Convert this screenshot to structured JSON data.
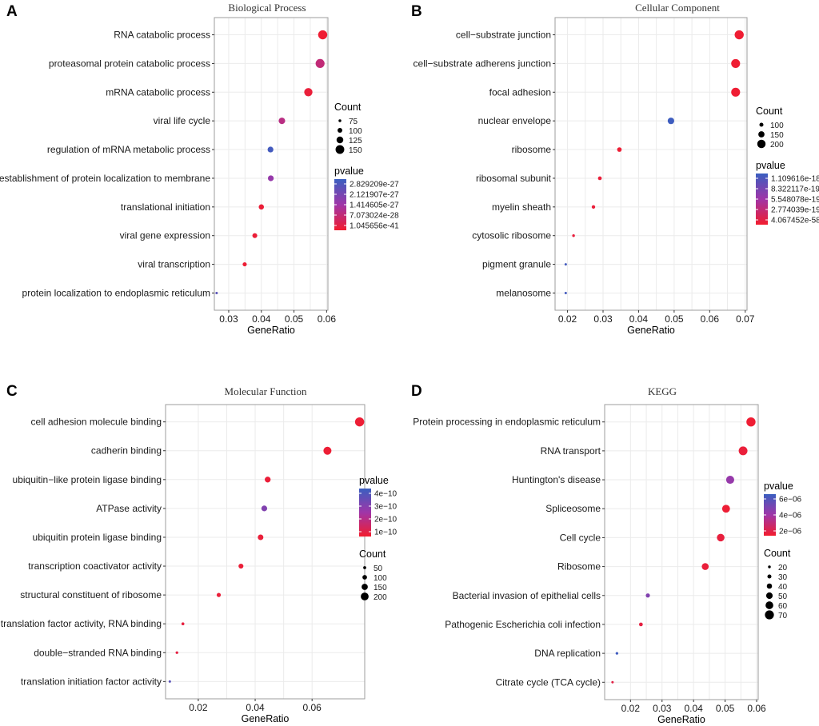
{
  "chart_data": [
    {
      "panel": "A",
      "type": "scatter",
      "title": "Biological Process",
      "xlabel": "GeneRatio",
      "xlim": [
        0.0256,
        0.0604
      ],
      "xticks": [
        "0.03",
        "0.04",
        "0.05",
        "0.06"
      ],
      "categories": [
        "RNA catabolic process",
        "proteasomal protein catabolic process",
        "mRNA catabolic process",
        "viral life cycle",
        "regulation of mRNA metabolic process",
        "establishment of protein localization to membrane",
        "translational initiation",
        "viral gene expression",
        "viral transcription",
        "protein localization to endoplasmic reticulum"
      ],
      "gene_ratio": [
        0.0588,
        0.058,
        0.0544,
        0.0463,
        0.0428,
        0.0429,
        0.04,
        0.038,
        0.0349,
        0.0263
      ],
      "count": [
        155,
        153,
        144,
        122,
        113,
        113,
        106,
        101,
        92,
        70
      ],
      "pvalue_level": [
        0.02,
        0.3,
        0.05,
        0.35,
        0.95,
        0.55,
        0.04,
        0.04,
        0.03,
        0.85
      ],
      "legend_order": [
        "size",
        "color"
      ],
      "size_legend": {
        "title": "Count",
        "labels": [
          "75",
          "100",
          "125",
          "150"
        ],
        "values": [
          75,
          100,
          125,
          150
        ],
        "range": [
          70,
          155
        ]
      },
      "color_legend": {
        "title": "pvalue",
        "labels": [
          "2.829209e-27",
          "2.121907e-27",
          "1.414605e-27",
          "7.073024e-28",
          "1.045656e-41"
        ]
      }
    },
    {
      "panel": "B",
      "type": "scatter",
      "title": "Cellular Component",
      "xlabel": "GeneRatio",
      "xlim": [
        0.0165,
        0.0705
      ],
      "xticks": [
        "0.02",
        "0.03",
        "0.04",
        "0.05",
        "0.06",
        "0.07"
      ],
      "categories": [
        "cell−substrate junction",
        "cell−substrate adherens junction",
        "focal adhesion",
        "nuclear envelope",
        "ribosome",
        "ribosomal subunit",
        "myelin sheath",
        "cytosolic ribosome",
        "pigment granule",
        "melanosome"
      ],
      "gene_ratio": [
        0.0683,
        0.0673,
        0.0673,
        0.0491,
        0.0346,
        0.0291,
        0.0273,
        0.0217,
        0.0195,
        0.0195
      ],
      "count": [
        218,
        213,
        213,
        158,
        112,
        93,
        87,
        69,
        62,
        62
      ],
      "pvalue_level": [
        0.02,
        0.02,
        0.02,
        0.98,
        0.03,
        0.05,
        0.05,
        0.06,
        0.95,
        0.95
      ],
      "legend_order": [
        "size",
        "color"
      ],
      "size_legend": {
        "title": "Count",
        "labels": [
          "100",
          "150",
          "200"
        ],
        "values": [
          100,
          150,
          200
        ],
        "range": [
          62,
          218
        ]
      },
      "color_legend": {
        "title": "pvalue",
        "labels": [
          "1.109616e-18",
          "8.322117e-19",
          "5.548078e-19",
          "2.774039e-19",
          "4.067452e-58"
        ]
      }
    },
    {
      "panel": "C",
      "type": "scatter",
      "title": "Molecular Function",
      "xlabel": "GeneRatio",
      "xlim": [
        0.0085,
        0.0785
      ],
      "xticks": [
        "0.02",
        "0.04",
        "0.06"
      ],
      "categories": [
        "cell adhesion molecule binding",
        "cadherin binding",
        "ubiquitin−like protein ligase binding",
        "ATPase activity",
        "ubiquitin protein ligase binding",
        "transcription coactivator activity",
        "structural constituent of ribosome",
        "translation factor activity, RNA binding",
        "double−stranded RNA binding",
        "translation initiation factor activity"
      ],
      "gene_ratio": [
        0.0767,
        0.0654,
        0.0444,
        0.0432,
        0.0419,
        0.035,
        0.0272,
        0.0146,
        0.0125,
        0.01
      ],
      "count": [
        240,
        205,
        139,
        136,
        131,
        110,
        85,
        46,
        39,
        31
      ],
      "pvalue_level": [
        0.03,
        0.03,
        0.04,
        0.65,
        0.05,
        0.04,
        0.05,
        0.07,
        0.08,
        0.85
      ],
      "legend_order": [
        "color",
        "size"
      ],
      "size_legend": {
        "title": "Count",
        "labels": [
          "50",
          "100",
          "150",
          "200"
        ],
        "values": [
          50,
          100,
          150,
          200
        ],
        "range": [
          31,
          240
        ]
      },
      "color_legend": {
        "title": "pvalue",
        "labels": [
          "4e−10",
          "3e−10",
          "2e−10",
          "1e−10"
        ]
      }
    },
    {
      "panel": "D",
      "type": "scatter",
      "title": "KEGG",
      "xlabel": "GeneRatio",
      "xlim": [
        0.0118,
        0.0605
      ],
      "xticks": [
        "0.02",
        "0.03",
        "0.04",
        "0.05",
        "0.06"
      ],
      "categories": [
        "Protein processing in endoplasmic reticulum",
        "RNA transport",
        "Huntington's disease",
        "Spliceosome",
        "Cell cycle",
        "Ribosome",
        "Bacterial invasion of epithelial cells",
        "Pathogenic Escherichia coli infection",
        "DNA replication",
        "Citrate cycle (TCA cycle)"
      ],
      "gene_ratio": [
        0.0582,
        0.0557,
        0.0516,
        0.0503,
        0.0486,
        0.0437,
        0.0255,
        0.0233,
        0.0157,
        0.0143
      ],
      "count": [
        71,
        68,
        63,
        61,
        59,
        53,
        31,
        28,
        19,
        17
      ],
      "pvalue_level": [
        0.02,
        0.05,
        0.55,
        0.03,
        0.06,
        0.05,
        0.65,
        0.08,
        0.97,
        0.1
      ],
      "legend_order": [
        "color",
        "size"
      ],
      "size_legend": {
        "title": "Count",
        "labels": [
          "20",
          "30",
          "40",
          "50",
          "60",
          "70"
        ],
        "values": [
          20,
          30,
          40,
          50,
          60,
          70
        ],
        "range": [
          17,
          71
        ]
      },
      "color_legend": {
        "title": "pvalue",
        "labels": [
          "6e−06",
          "4e−06",
          "2e−06"
        ]
      }
    }
  ],
  "colors": {
    "high_pvalue": "#3a5fc0",
    "mid_pvalue": "#a035a8",
    "low_pvalue": "#f21c2e"
  }
}
